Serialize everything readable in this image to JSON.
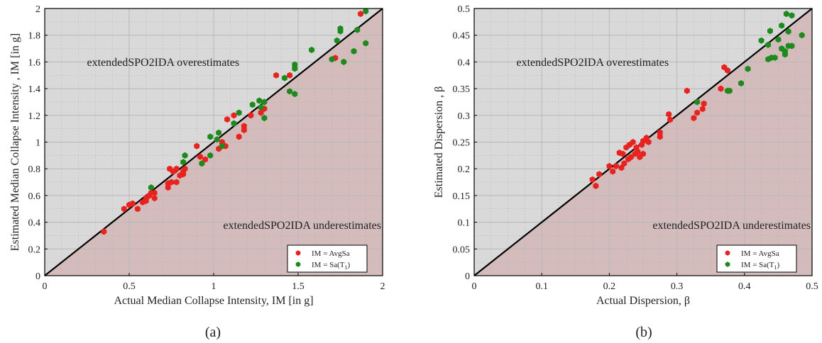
{
  "chart_data": [
    {
      "type": "scatter",
      "panel_label": "(a)",
      "xlabel": "Actual Median Collapse Intensity, IM [in g]",
      "ylabel": "Estimated Median Collapse Intensity , IM [in g]",
      "xlim": [
        0,
        2
      ],
      "ylim": [
        0,
        2
      ],
      "xticks": [
        "0",
        "0.5",
        "1",
        "1.5",
        "2"
      ],
      "yticks": [
        "0",
        "0.2",
        "0.4",
        "0.6",
        "0.8",
        "1",
        "1.2",
        "1.4",
        "1.6",
        "1.8",
        "2"
      ],
      "grid": true,
      "reference_line": "y = x",
      "region_labels": {
        "upper": "extendedSPO2IDA overestimates",
        "lower": "extendedSPO2IDA underestimates"
      },
      "colors": {
        "upper_region": "#d9d9d9",
        "lower_region": "#d4bcbc",
        "avgsa": "#e8231f",
        "sat1": "#1e8a1e",
        "reference": "#000000"
      },
      "legend_position": "bottom-right",
      "series": [
        {
          "name": "IM = AvgSa",
          "color": "#e8231f",
          "points": [
            [
              0.35,
              0.33
            ],
            [
              0.47,
              0.5
            ],
            [
              0.5,
              0.53
            ],
            [
              0.52,
              0.54
            ],
            [
              0.55,
              0.5
            ],
            [
              0.58,
              0.55
            ],
            [
              0.6,
              0.58
            ],
            [
              0.6,
              0.56
            ],
            [
              0.62,
              0.6
            ],
            [
              0.63,
              0.62
            ],
            [
              0.65,
              0.58
            ],
            [
              0.65,
              0.62
            ],
            [
              0.73,
              0.66
            ],
            [
              0.73,
              0.69
            ],
            [
              0.75,
              0.7
            ],
            [
              0.78,
              0.7
            ],
            [
              0.74,
              0.8
            ],
            [
              0.76,
              0.78
            ],
            [
              0.78,
              0.8
            ],
            [
              0.8,
              0.75
            ],
            [
              0.82,
              0.78
            ],
            [
              0.83,
              0.8
            ],
            [
              0.82,
              0.76
            ],
            [
              0.9,
              0.97
            ],
            [
              0.92,
              0.89
            ],
            [
              0.95,
              0.87
            ],
            [
              1.03,
              0.95
            ],
            [
              1.05,
              1.0
            ],
            [
              1.07,
              0.97
            ],
            [
              1.08,
              1.17
            ],
            [
              1.12,
              1.2
            ],
            [
              1.15,
              1.04
            ],
            [
              1.18,
              1.09
            ],
            [
              1.18,
              1.12
            ],
            [
              1.22,
              1.2
            ],
            [
              1.28,
              1.22
            ],
            [
              1.3,
              1.25
            ],
            [
              1.37,
              1.5
            ],
            [
              1.45,
              1.5
            ],
            [
              1.72,
              1.63
            ],
            [
              1.87,
              1.96
            ]
          ]
        },
        {
          "name": "IM = Sa(T1)",
          "color": "#1e8a1e",
          "points": [
            [
              0.63,
              0.66
            ],
            [
              0.82,
              0.85
            ],
            [
              0.83,
              0.9
            ],
            [
              0.93,
              0.84
            ],
            [
              0.98,
              1.04
            ],
            [
              0.98,
              0.9
            ],
            [
              1.02,
              1.02
            ],
            [
              1.03,
              1.07
            ],
            [
              1.05,
              0.97
            ],
            [
              1.12,
              1.14
            ],
            [
              1.15,
              1.22
            ],
            [
              1.23,
              1.28
            ],
            [
              1.27,
              1.31
            ],
            [
              1.28,
              1.26
            ],
            [
              1.3,
              1.18
            ],
            [
              1.3,
              1.3
            ],
            [
              1.42,
              1.48
            ],
            [
              1.45,
              1.38
            ],
            [
              1.48,
              1.36
            ],
            [
              1.48,
              1.55
            ],
            [
              1.48,
              1.58
            ],
            [
              1.58,
              1.69
            ],
            [
              1.7,
              1.62
            ],
            [
              1.73,
              1.76
            ],
            [
              1.75,
              1.83
            ],
            [
              1.75,
              1.85
            ],
            [
              1.77,
              1.6
            ],
            [
              1.83,
              1.68
            ],
            [
              1.85,
              1.84
            ],
            [
              1.9,
              1.74
            ],
            [
              1.9,
              1.98
            ]
          ]
        }
      ]
    },
    {
      "type": "scatter",
      "panel_label": "(b)",
      "xlabel": "Actual Dispersion, β",
      "ylabel": "Estimated Dispersion , β",
      "xlim": [
        0,
        0.5
      ],
      "ylim": [
        0,
        0.5
      ],
      "xticks": [
        "0",
        "0.1",
        "0.2",
        "0.3",
        "0.4",
        "0.5"
      ],
      "yticks": [
        "0",
        "0.05",
        "0.1",
        "0.15",
        "0.2",
        "0.25",
        "0.3",
        "0.35",
        "0.4",
        "0.45",
        "0.5"
      ],
      "grid": true,
      "reference_line": "y = x",
      "region_labels": {
        "upper": "extendedSPO2IDA overestimates",
        "lower": "extendedSPO2IDA underestimates"
      },
      "colors": {
        "upper_region": "#d9d9d9",
        "lower_region": "#d4bcbc",
        "avgsa": "#e8231f",
        "sat1": "#1e8a1e",
        "reference": "#000000"
      },
      "legend_position": "bottom-right",
      "series": [
        {
          "name": "IM = AvgSa",
          "color": "#e8231f",
          "points": [
            [
              0.175,
              0.18
            ],
            [
              0.18,
              0.168
            ],
            [
              0.185,
              0.19
            ],
            [
              0.2,
              0.205
            ],
            [
              0.205,
              0.195
            ],
            [
              0.21,
              0.205
            ],
            [
              0.215,
              0.23
            ],
            [
              0.218,
              0.202
            ],
            [
              0.22,
              0.228
            ],
            [
              0.222,
              0.21
            ],
            [
              0.225,
              0.24
            ],
            [
              0.228,
              0.218
            ],
            [
              0.23,
              0.245
            ],
            [
              0.232,
              0.222
            ],
            [
              0.235,
              0.25
            ],
            [
              0.238,
              0.228
            ],
            [
              0.24,
              0.24
            ],
            [
              0.242,
              0.232
            ],
            [
              0.245,
              0.222
            ],
            [
              0.248,
              0.245
            ],
            [
              0.25,
              0.252
            ],
            [
              0.25,
              0.228
            ],
            [
              0.255,
              0.258
            ],
            [
              0.258,
              0.25
            ],
            [
              0.275,
              0.268
            ],
            [
              0.275,
              0.26
            ],
            [
              0.288,
              0.302
            ],
            [
              0.29,
              0.292
            ],
            [
              0.315,
              0.346
            ],
            [
              0.325,
              0.295
            ],
            [
              0.33,
              0.305
            ],
            [
              0.338,
              0.312
            ],
            [
              0.34,
              0.322
            ],
            [
              0.365,
              0.35
            ],
            [
              0.37,
              0.39
            ],
            [
              0.375,
              0.384
            ]
          ]
        },
        {
          "name": "IM = Sa(T1)",
          "color": "#1e8a1e",
          "points": [
            [
              0.33,
              0.325
            ],
            [
              0.375,
              0.346
            ],
            [
              0.378,
              0.346
            ],
            [
              0.395,
              0.36
            ],
            [
              0.405,
              0.387
            ],
            [
              0.425,
              0.44
            ],
            [
              0.435,
              0.432
            ],
            [
              0.435,
              0.405
            ],
            [
              0.438,
              0.458
            ],
            [
              0.44,
              0.408
            ],
            [
              0.445,
              0.408
            ],
            [
              0.45,
              0.442
            ],
            [
              0.455,
              0.468
            ],
            [
              0.455,
              0.425
            ],
            [
              0.46,
              0.42
            ],
            [
              0.46,
              0.414
            ],
            [
              0.462,
              0.49
            ],
            [
              0.465,
              0.457
            ],
            [
              0.465,
              0.43
            ],
            [
              0.47,
              0.487
            ],
            [
              0.47,
              0.43
            ],
            [
              0.485,
              0.45
            ]
          ]
        }
      ]
    }
  ],
  "legend_labels": {
    "avgsa": "IM = AvgSa",
    "sat1_prefix": "IM = Sa(T",
    "sat1_sub": "1",
    "sat1_suffix": ")"
  },
  "captions": {
    "a": "(a)",
    "b": "(b)"
  }
}
